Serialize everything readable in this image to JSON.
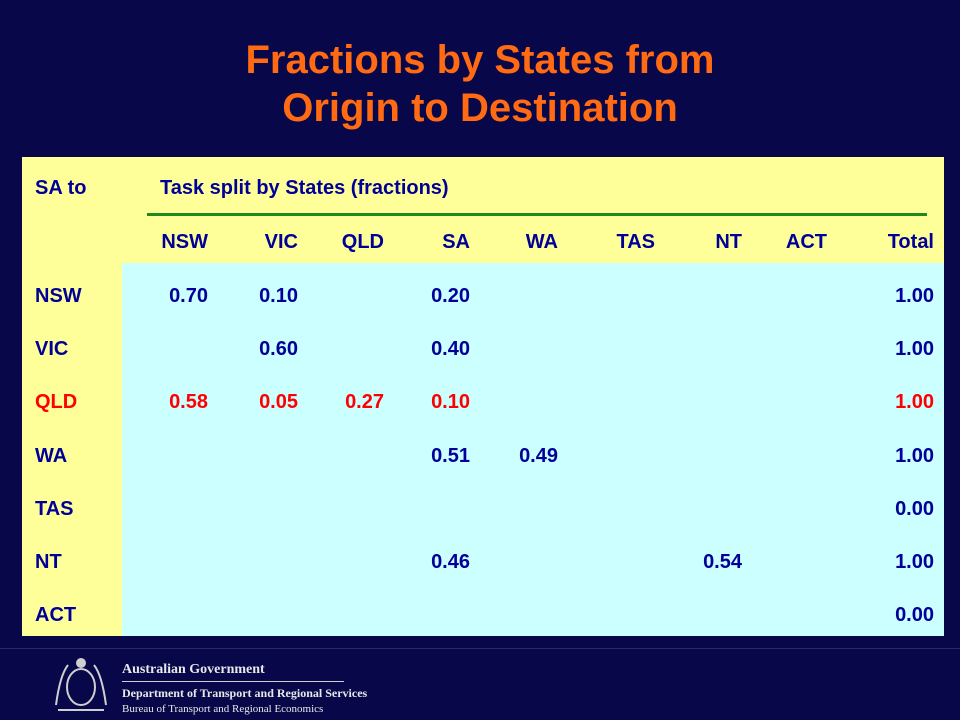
{
  "title": [
    "Fractions by States from",
    "Origin to Destination"
  ],
  "table": {
    "corner": "SA to",
    "group_header": "Task split by States (fractions)",
    "columns": [
      "NSW",
      "VIC",
      "QLD",
      "SA",
      "WA",
      "TAS",
      "NT",
      "ACT",
      "Total"
    ],
    "rows": [
      {
        "label": "NSW",
        "color": "#000099",
        "cells": [
          "0.70",
          "0.10",
          null,
          "0.20",
          null,
          null,
          null,
          null,
          "1.00"
        ]
      },
      {
        "label": "VIC",
        "color": "#000099",
        "cells": [
          null,
          "0.60",
          null,
          "0.40",
          null,
          null,
          null,
          null,
          "1.00"
        ]
      },
      {
        "label": "QLD",
        "color": "#ff0000",
        "cells": [
          "0.58",
          "0.05",
          "0.27",
          "0.10",
          null,
          null,
          null,
          null,
          "1.00"
        ]
      },
      {
        "label": "WA",
        "color": "#000099",
        "cells": [
          null,
          null,
          null,
          "0.51",
          "0.49",
          null,
          null,
          null,
          "1.00"
        ]
      },
      {
        "label": "TAS",
        "color": "#000099",
        "cells": [
          null,
          null,
          null,
          null,
          null,
          null,
          null,
          null,
          "0.00"
        ]
      },
      {
        "label": "NT",
        "color": "#000099",
        "cells": [
          null,
          null,
          null,
          "0.46",
          null,
          null,
          "0.54",
          null,
          "1.00"
        ]
      },
      {
        "label": "ACT",
        "color": "#000099",
        "cells": [
          null,
          null,
          null,
          null,
          null,
          null,
          null,
          null,
          "0.00"
        ]
      }
    ]
  },
  "footer": {
    "government": "Australian Government",
    "department": "Department of Transport and Regional Services",
    "bureau": "Bureau of Transport and Regional Economics"
  }
}
